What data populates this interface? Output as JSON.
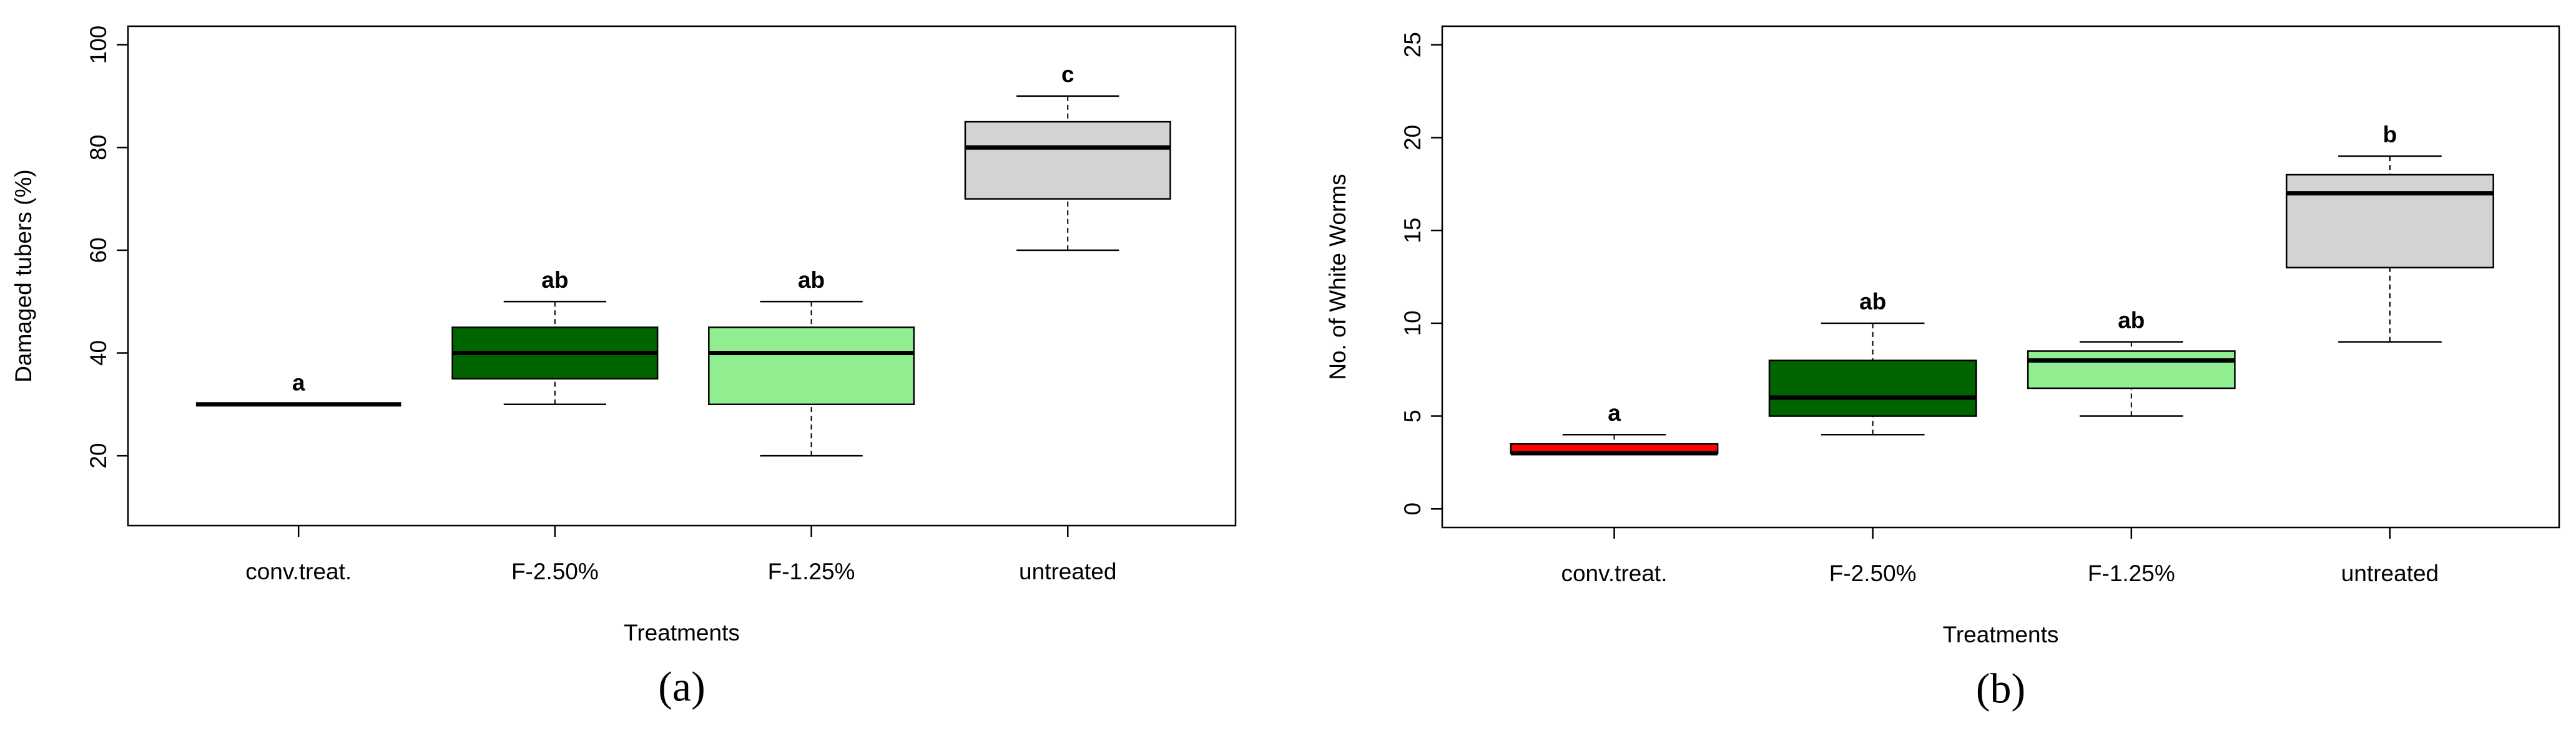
{
  "chart_data": [
    {
      "type": "box",
      "panel_label": "(a)",
      "xlabel": "Treatments",
      "ylabel": "Damaged tubers (%)",
      "categories": [
        "conv.treat.",
        "F-2.50%",
        "F-1.25%",
        "untreated"
      ],
      "colors": [
        "#ff0000",
        "#006400",
        "#90ee90",
        "#d3d3d3"
      ],
      "boxes": [
        {
          "min": 30,
          "q1": 30,
          "median": 30,
          "q3": 30,
          "max": 30
        },
        {
          "min": 30,
          "q1": 35,
          "median": 40,
          "q3": 45,
          "max": 50
        },
        {
          "min": 20,
          "q1": 30,
          "median": 40,
          "q3": 45,
          "max": 50
        },
        {
          "min": 60,
          "q1": 70,
          "median": 80,
          "q3": 85,
          "max": 90
        }
      ],
      "letters": [
        "a",
        "ab",
        "ab",
        "c"
      ],
      "ylim": [
        6.4,
        103.6
      ],
      "yticks": [
        20,
        40,
        60,
        80,
        100
      ]
    },
    {
      "type": "box",
      "panel_label": "(b)",
      "xlabel": "Treatments",
      "ylabel": "No. of White Worms",
      "categories": [
        "conv.treat.",
        "F-2.50%",
        "F-1.25%",
        "untreated"
      ],
      "colors": [
        "#ff0000",
        "#006400",
        "#90ee90",
        "#d3d3d3"
      ],
      "boxes": [
        {
          "min": 3,
          "q1": 3,
          "median": 3,
          "q3": 3.5,
          "max": 4
        },
        {
          "min": 4,
          "q1": 5,
          "median": 6,
          "q3": 8,
          "max": 10
        },
        {
          "min": 5,
          "q1": 6.5,
          "median": 8,
          "q3": 8.5,
          "max": 9
        },
        {
          "min": 9,
          "q1": 13,
          "median": 17,
          "q3": 18,
          "max": 19
        }
      ],
      "letters": [
        "a",
        "ab",
        "ab",
        "b"
      ],
      "ylim": [
        -1,
        26
      ],
      "yticks": [
        0,
        5,
        10,
        15,
        20,
        25
      ]
    }
  ]
}
